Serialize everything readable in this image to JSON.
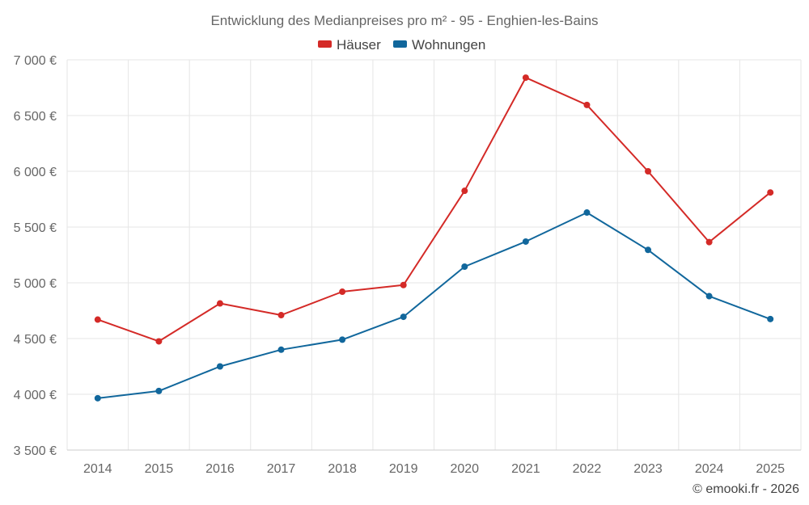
{
  "colors": {
    "haeuser": "#d42a27",
    "wohnungen": "#11679c"
  },
  "chart_data": {
    "type": "line",
    "title": "Entwicklung des Medianpreises pro m² - 95 - Enghien-les-Bains",
    "categories": [
      "2014",
      "2015",
      "2016",
      "2017",
      "2018",
      "2019",
      "2020",
      "2021",
      "2022",
      "2023",
      "2024",
      "2025"
    ],
    "series": [
      {
        "name": "Häuser",
        "color": "#d42a27",
        "values": [
          4670,
          4475,
          4815,
          4710,
          4920,
          4980,
          5825,
          6840,
          6595,
          6000,
          5365,
          5810
        ]
      },
      {
        "name": "Wohnungen",
        "color": "#11679c",
        "values": [
          3965,
          4030,
          4250,
          4400,
          4490,
          4695,
          5145,
          5370,
          5630,
          5295,
          4880,
          4675
        ]
      }
    ],
    "ylim": [
      3500,
      7000
    ],
    "yticks": [
      3500,
      4000,
      4500,
      5000,
      5500,
      6000,
      6500,
      7000
    ],
    "ytick_labels": [
      "3 500 €",
      "4 000 €",
      "4 500 €",
      "5 000 €",
      "5 500 €",
      "6 000 €",
      "6 500 €",
      "7 000 €"
    ],
    "xlabel": "",
    "ylabel": "",
    "grid": true,
    "legend_position": "top-center"
  },
  "credit": "© emooki.fr - 2026"
}
